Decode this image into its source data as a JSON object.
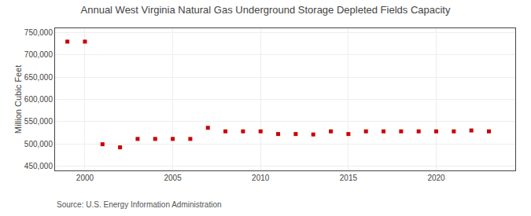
{
  "chart_data": {
    "type": "scatter",
    "title": "Annual West Virginia Natural Gas Underground Storage Depleted Fields Capacity",
    "ylabel": "Million Cubic Feet",
    "annotations": [
      "Source: U.S. Energy Information Administration"
    ],
    "color": "#cc0000",
    "marker": "square",
    "grid": true,
    "x": [
      1999,
      2000,
      2001,
      2002,
      2003,
      2004,
      2005,
      2006,
      2007,
      2008,
      2009,
      2010,
      2011,
      2012,
      2013,
      2014,
      2015,
      2016,
      2017,
      2018,
      2019,
      2020,
      2021,
      2022,
      2023
    ],
    "values": [
      730000,
      730000,
      499000,
      492000,
      511000,
      511000,
      511000,
      511000,
      536000,
      528000,
      528000,
      528000,
      522000,
      522000,
      521000,
      528000,
      522000,
      528000,
      528000,
      528000,
      528000,
      528000,
      528000,
      530000,
      528000
    ],
    "xlim": [
      1998.3,
      2024.5
    ],
    "xticks": [
      2000,
      2005,
      2010,
      2015,
      2020
    ],
    "ylim": [
      440000,
      760000
    ],
    "yticks": [
      {
        "value": 450000,
        "label": "450,000"
      },
      {
        "value": 500000,
        "label": "500,000"
      },
      {
        "value": 550000,
        "label": "550,000"
      },
      {
        "value": 600000,
        "label": "600,000"
      },
      {
        "value": 650000,
        "label": "650,000"
      },
      {
        "value": 700000,
        "label": "700,000"
      },
      {
        "value": 750000,
        "label": "750,000"
      }
    ]
  }
}
